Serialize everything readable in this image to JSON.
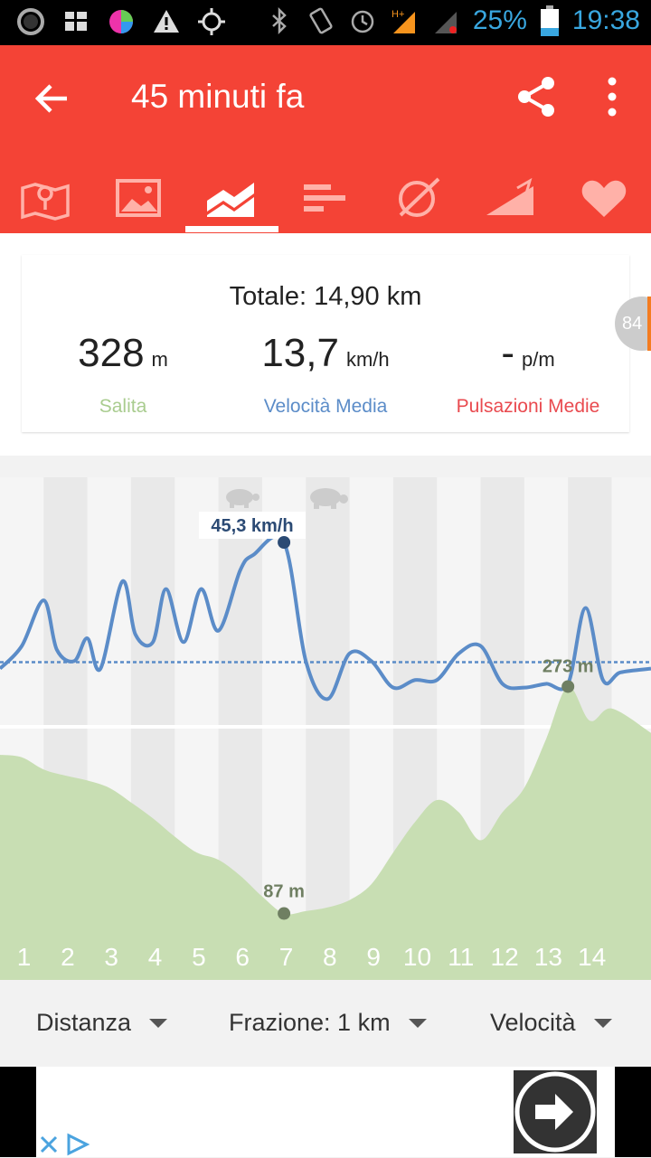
{
  "status_bar": {
    "battery": "25%",
    "time": "19:38"
  },
  "app_bar": {
    "title": "45 minuti fa"
  },
  "tabs": [
    "map-icon",
    "image-icon",
    "chart-icon",
    "splits-icon",
    "speedometer-icon",
    "elevation-icon",
    "heart-icon"
  ],
  "summary": {
    "total": "Totale: 14,90 km",
    "climb_value": "328",
    "climb_unit": "m",
    "climb_label": "Salita",
    "speed_value": "13,7",
    "speed_unit": "km/h",
    "speed_label": "Velocità Media",
    "pulse_value": "-",
    "pulse_unit": "p/m",
    "pulse_label": "Pulsazioni Medie"
  },
  "edge_badge": "84",
  "chart": {
    "speed_max_label": "45,3 km/h",
    "elev_min_label": "87 m",
    "elev_max_label": "273 m",
    "x_labels": [
      "1",
      "2",
      "3",
      "4",
      "5",
      "6",
      "7",
      "8",
      "9",
      "10",
      "11",
      "12",
      "13",
      "14"
    ]
  },
  "chart_data": {
    "type": "line",
    "x_label": "",
    "x_range": [
      0,
      14.9
    ],
    "series": [
      {
        "values_x": [
          0,
          0.5,
          1,
          1.3,
          1.7,
          2,
          2.3,
          2.8,
          3.1,
          3.5,
          3.8,
          4.2,
          4.6,
          5,
          5.5,
          5.8,
          6.5,
          7,
          7.5,
          8,
          8.5,
          9,
          9.5,
          10,
          10.5,
          11,
          11.5,
          12,
          12.5,
          13,
          13.4,
          13.8,
          14.2,
          14.9
        ],
        "values_y": [
          12,
          18,
          30,
          17,
          14,
          20,
          12,
          35,
          21,
          19,
          33,
          19,
          33,
          22,
          38,
          42,
          45.3,
          14,
          4,
          16,
          14,
          7,
          9,
          9,
          16,
          18,
          8,
          7,
          8,
          8,
          28,
          9,
          11,
          12
        ]
      },
      {
        "values_x": [
          0,
          0.5,
          1,
          1.5,
          2,
          2.5,
          3,
          3.5,
          4,
          4.5,
          5,
          5.5,
          6,
          6.5,
          7,
          7.5,
          8,
          8.5,
          9,
          9.5,
          10,
          10.5,
          11,
          11.5,
          12,
          12.5,
          13,
          13.5,
          14,
          14.9
        ],
        "values_y": [
          217,
          215,
          205,
          200,
          196,
          190,
          178,
          165,
          150,
          137,
          131,
          118,
          101,
          87,
          89,
          92,
          98,
          111,
          137,
          162,
          180,
          170,
          147,
          170,
          190,
          230,
          273,
          245,
          255,
          235
        ]
      }
    ],
    "speed_average": 13.7,
    "speed_max": 45.3,
    "elevation_min": 87,
    "elevation_max": 273
  },
  "bottom": {
    "distance": "Distanza",
    "split": "Frazione: 1 km",
    "metric": "Velocità"
  }
}
